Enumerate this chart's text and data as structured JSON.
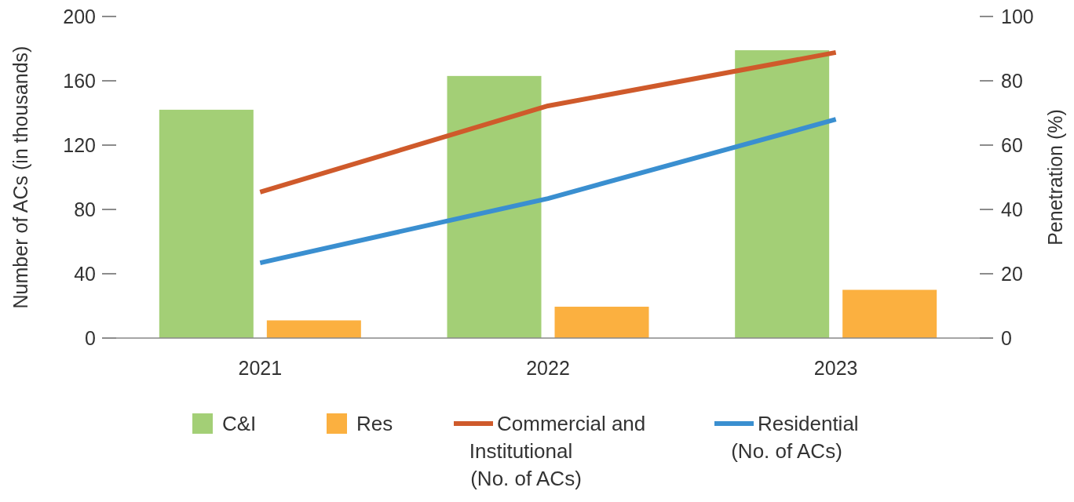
{
  "chart_data": {
    "type": "bar",
    "categories": [
      "2021",
      "2022",
      "2023"
    ],
    "ylabel": "Number of ACs (in thousands)",
    "y2label": "Penetration (%)",
    "ylim": [
      0,
      200
    ],
    "yticks": [
      0,
      40,
      80,
      120,
      160,
      200
    ],
    "y2lim": [
      0,
      100
    ],
    "y2ticks": [
      0,
      20,
      40,
      60,
      80,
      100
    ],
    "grid": false,
    "legend": "bottom",
    "series": [
      {
        "name": "C&I",
        "color": "#a3cf76",
        "values": [
          142,
          163,
          179
        ]
      },
      {
        "name": "Res",
        "color": "#fbb040",
        "values": [
          11,
          19.5,
          30
        ]
      },
      {
        "name": "Commercial and Institutional (No. of ACs)",
        "type": "line",
        "axis": "y2",
        "color": "#cf5a2b",
        "values": [
          45.4,
          72.2,
          88.8
        ]
      },
      {
        "name": "Residential (No. of ACs)",
        "type": "line",
        "axis": "y2",
        "color": "#3a8fd0",
        "values": [
          23.4,
          43.4,
          68
        ]
      }
    ]
  }
}
